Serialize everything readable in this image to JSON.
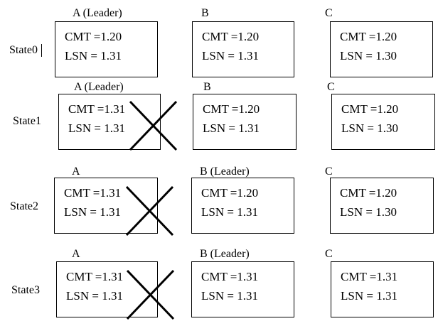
{
  "colors": {
    "line": "#000000",
    "background": "#ffffff"
  },
  "states": [
    {
      "name": "State0",
      "nodes": [
        {
          "label": "A (Leader)",
          "cmt": "CMT =1.20",
          "lsn": "LSN = 1.31",
          "crossed": false
        },
        {
          "label": "B",
          "cmt": "CMT =1.20",
          "lsn": "LSN = 1.31",
          "crossed": false
        },
        {
          "label": "C",
          "cmt": "CMT =1.20",
          "lsn": "LSN = 1.30",
          "crossed": false
        }
      ]
    },
    {
      "name": "State1",
      "nodes": [
        {
          "label": "A (Leader)",
          "cmt": "CMT =1.31",
          "lsn": "LSN = 1.31",
          "crossed": true
        },
        {
          "label": "B",
          "cmt": "CMT =1.20",
          "lsn": "LSN = 1.31",
          "crossed": false
        },
        {
          "label": "C",
          "cmt": "CMT =1.20",
          "lsn": "LSN = 1.30",
          "crossed": false
        }
      ]
    },
    {
      "name": "State2",
      "nodes": [
        {
          "label": "A",
          "cmt": "CMT =1.31",
          "lsn": "LSN = 1.31",
          "crossed": true
        },
        {
          "label": "B (Leader)",
          "cmt": "CMT =1.20",
          "lsn": "LSN = 1.31",
          "crossed": false
        },
        {
          "label": "C",
          "cmt": "CMT =1.20",
          "lsn": "LSN = 1.30",
          "crossed": false
        }
      ]
    },
    {
      "name": "State3",
      "nodes": [
        {
          "label": "A",
          "cmt": "CMT =1.31",
          "lsn": "LSN = 1.31",
          "crossed": true
        },
        {
          "label": "B (Leader)",
          "cmt": "CMT =1.31",
          "lsn": "LSN = 1.31",
          "crossed": false
        },
        {
          "label": "C",
          "cmt": "CMT =1.31",
          "lsn": "LSN = 1.31",
          "crossed": false
        }
      ]
    }
  ]
}
